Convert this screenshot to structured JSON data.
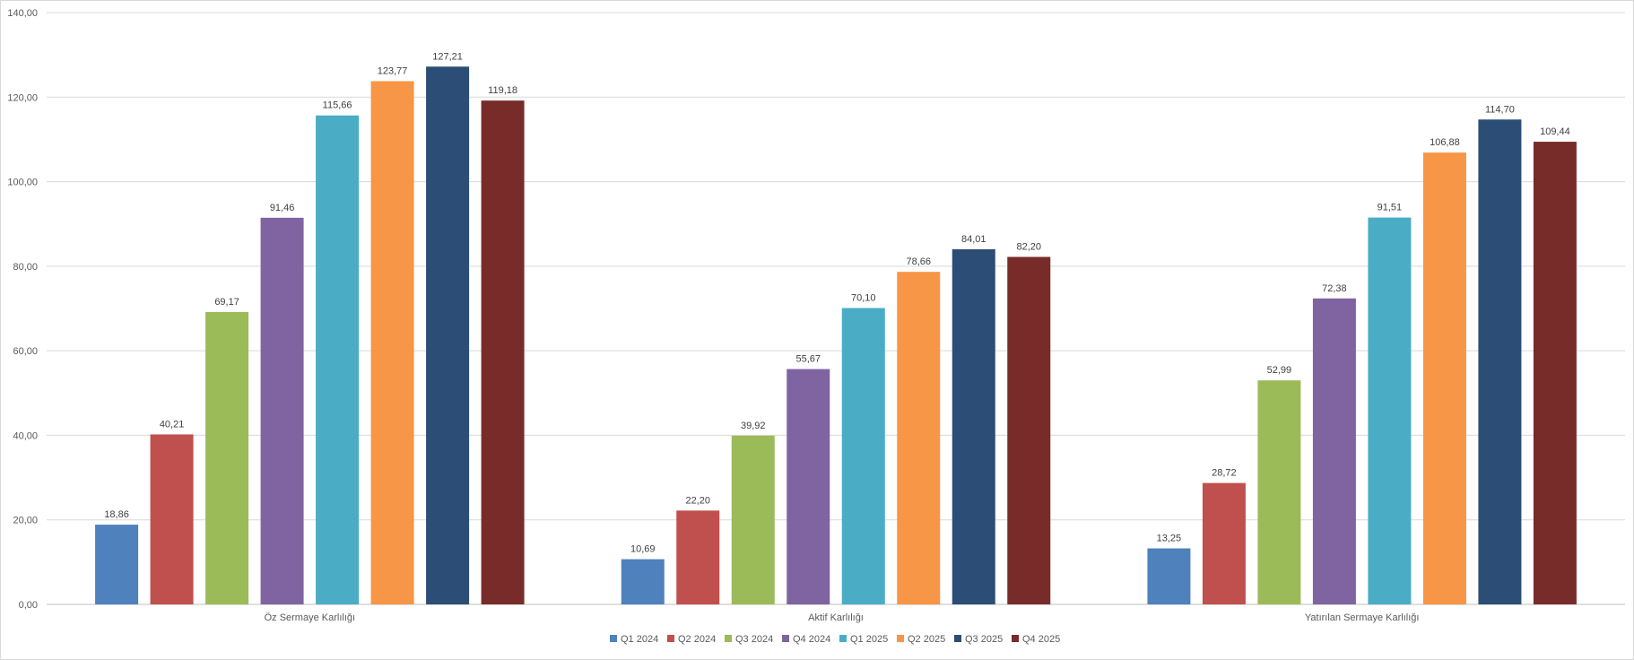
{
  "chart_data": {
    "type": "bar",
    "categories": [
      "Öz Sermaye Karlılığı",
      "Aktif Karlılığı",
      "Yatırılan Sermaye Karlılığı"
    ],
    "series": [
      {
        "name": "Q1 2024",
        "color": "#4F81BD",
        "values": [
          18.86,
          10.69,
          13.25
        ]
      },
      {
        "name": "Q2 2024",
        "color": "#C0504D",
        "values": [
          40.21,
          22.2,
          28.72
        ]
      },
      {
        "name": "Q3 2024",
        "color": "#9BBB59",
        "values": [
          69.17,
          39.92,
          52.99
        ]
      },
      {
        "name": "Q4 2024",
        "color": "#8064A2",
        "values": [
          91.46,
          55.67,
          72.38
        ]
      },
      {
        "name": "Q1 2025",
        "color": "#4BACC6",
        "values": [
          115.66,
          70.1,
          91.51
        ]
      },
      {
        "name": "Q2 2025",
        "color": "#F79646",
        "values": [
          123.77,
          78.66,
          106.88
        ]
      },
      {
        "name": "Q3 2025",
        "color": "#2C4D75",
        "values": [
          127.21,
          84.01,
          114.7
        ]
      },
      {
        "name": "Q4 2025",
        "color": "#772C2A",
        "values": [
          119.18,
          82.2,
          109.44
        ]
      }
    ],
    "data_labels": [
      [
        "18,86",
        "10,69",
        "13,25"
      ],
      [
        "40,21",
        "22,20",
        "28,72"
      ],
      [
        "69,17",
        "39,92",
        "52,99"
      ],
      [
        "91,46",
        "55,67",
        "72,38"
      ],
      [
        "115,66",
        "70,10",
        "91,51"
      ],
      [
        "123,77",
        "78,66",
        "106,88"
      ],
      [
        "127,21",
        "84,01",
        "114,70"
      ],
      [
        "119,18",
        "82,20",
        "109,44"
      ]
    ],
    "y_ticks": [
      0,
      20,
      40,
      60,
      80,
      100,
      120,
      140
    ],
    "y_tick_labels": [
      "0,00",
      "20,00",
      "40,00",
      "60,00",
      "80,00",
      "100,00",
      "120,00",
      "140,00"
    ],
    "ylim": [
      0,
      140
    ],
    "title": "",
    "xlabel": "",
    "ylabel": "",
    "grid": true,
    "legend_position": "bottom"
  }
}
